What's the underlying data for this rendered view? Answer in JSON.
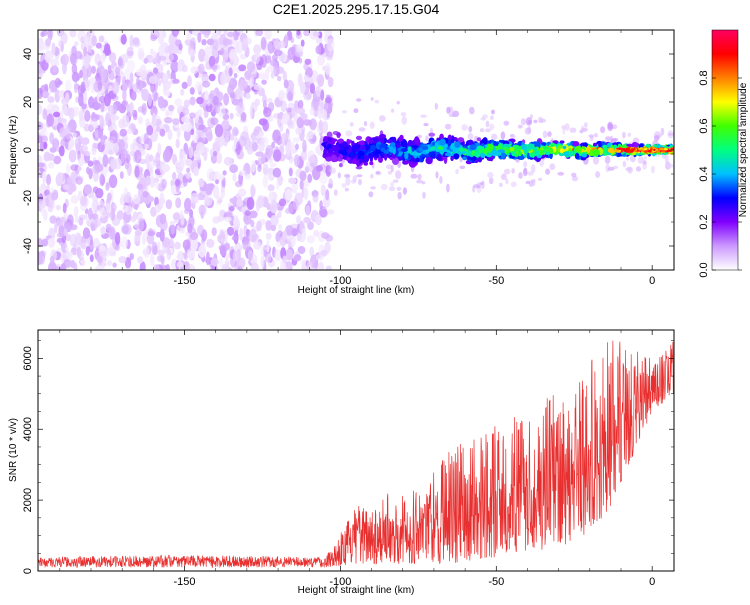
{
  "title": "C2E1.2025.295.17.15.G04",
  "chart_data": [
    {
      "type": "heatmap",
      "xlabel": "Height of straight line (km)",
      "ylabel": "Frequency (Hz)",
      "xlim": [
        -197,
        7
      ],
      "ylim": [
        -50,
        50
      ],
      "x_ticks": [
        "-150",
        "-100",
        "-50",
        "0"
      ],
      "x_tick_values": [
        -150,
        -100,
        -50,
        0
      ],
      "y_ticks": [
        "-40",
        "-20",
        "0",
        "20",
        "40"
      ],
      "y_tick_values": [
        -40,
        -20,
        0,
        20,
        40
      ],
      "colorbar": {
        "label": "Normalized spectral amplitude",
        "range": [
          0,
          1
        ],
        "ticks": [
          "0.0",
          "0.2",
          "0.4",
          "0.6",
          "0.8"
        ],
        "tick_values": [
          0.0,
          0.2,
          0.4,
          0.6,
          0.8
        ],
        "stops": [
          "#ffffff",
          "#cc99ff",
          "#8000ff",
          "#0000ff",
          "#00c0ff",
          "#00ff80",
          "#40ff00",
          "#ffff00",
          "#ff8000",
          "#ff0000",
          "#ff0060"
        ]
      },
      "features": [
        {
          "x_range": [
            -197,
            -103
          ],
          "y_range": [
            -50,
            50
          ],
          "amplitude": [
            0.02,
            0.12
          ],
          "pattern": "scattered noise"
        },
        {
          "x_range": [
            -105,
            7
          ],
          "center_frequency": 0,
          "half_width_start": 9,
          "half_width_end": 1.5,
          "amplitude_start": 0.2,
          "amplitude_end": 1.0,
          "pattern": "narrowing band at 0 Hz"
        }
      ]
    },
    {
      "type": "line",
      "xlabel": "Height of straight line (km)",
      "ylabel": "SNR (10 * v/v)",
      "xlim": [
        -197,
        7
      ],
      "ylim": [
        0,
        6800
      ],
      "x_ticks": [
        "-150",
        "-100",
        "-50",
        "0"
      ],
      "x_tick_values": [
        -150,
        -100,
        -50,
        0
      ],
      "y_ticks": [
        "0",
        "2000",
        "4000",
        "6000"
      ],
      "y_tick_values": [
        0,
        2000,
        4000,
        6000
      ],
      "color": "#e83030",
      "envelope": [
        {
          "x": -197,
          "lo": 100,
          "hi": 400
        },
        {
          "x": -150,
          "lo": 100,
          "hi": 450
        },
        {
          "x": -105,
          "lo": 100,
          "hi": 400
        },
        {
          "x": -95,
          "lo": 200,
          "hi": 1800
        },
        {
          "x": -85,
          "lo": 200,
          "hi": 2200
        },
        {
          "x": -75,
          "lo": 200,
          "hi": 2400
        },
        {
          "x": -65,
          "lo": 200,
          "hi": 3500
        },
        {
          "x": -55,
          "lo": 300,
          "hi": 4000
        },
        {
          "x": -45,
          "lo": 500,
          "hi": 4300
        },
        {
          "x": -35,
          "lo": 600,
          "hi": 4800
        },
        {
          "x": -25,
          "lo": 800,
          "hi": 5500
        },
        {
          "x": -15,
          "lo": 1500,
          "hi": 6500
        },
        {
          "x": -10,
          "lo": 2500,
          "hi": 6700
        },
        {
          "x": -5,
          "lo": 3500,
          "hi": 6200
        },
        {
          "x": 0,
          "lo": 4500,
          "hi": 6000
        },
        {
          "x": 7,
          "lo": 5000,
          "hi": 6500
        }
      ]
    }
  ]
}
